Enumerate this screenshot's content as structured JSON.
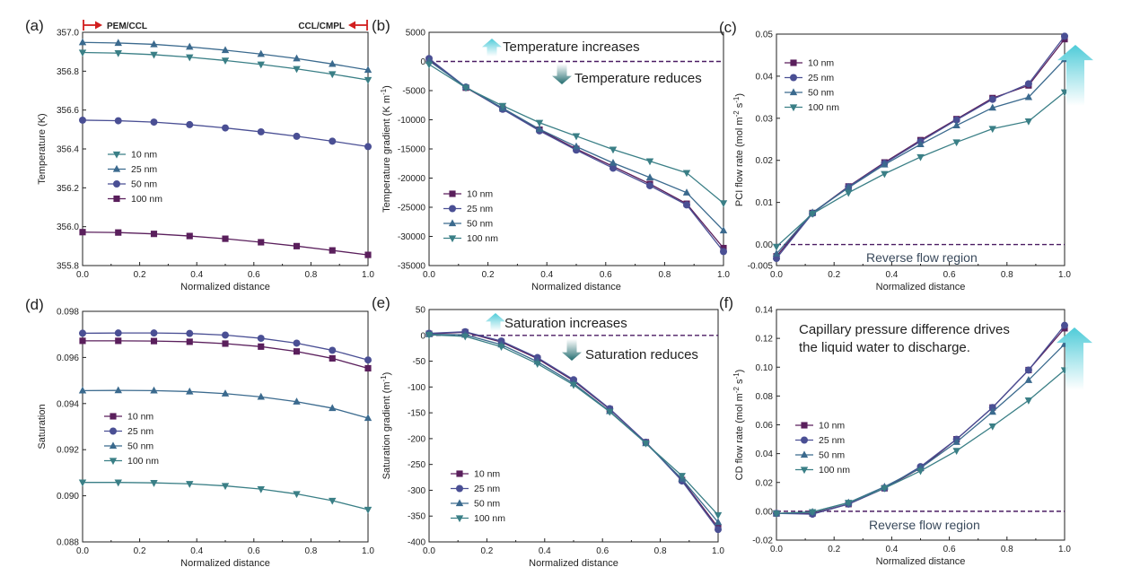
{
  "colors": {
    "c10": "#3a7f86",
    "c25": "#3b6a8e",
    "c50": "#4a4f94",
    "c100": "#5a1f5c",
    "dashed": "#4b1d63",
    "arrow_light": "#5fd0dc",
    "arrow_dark": "#1f6a6d",
    "region_marker": "#d21e1e",
    "axis": "#222222"
  },
  "region_labels": {
    "left": "PEM/CCL",
    "right": "CCL/CMPL"
  },
  "chart_data": [
    {
      "panel": "(a)",
      "type": "line",
      "xlabel": "Normalized distance",
      "ylabel": "Temperature (K)",
      "xlim": [
        0,
        1
      ],
      "ylim": [
        355.8,
        357.0
      ],
      "xticks": [
        "0.0",
        "0.2",
        "0.4",
        "0.6",
        "0.8",
        "1.0"
      ],
      "yticks": [
        "355.8",
        "356.0",
        "356.2",
        "356.4",
        "356.6",
        "356.8",
        "357.0"
      ],
      "x": [
        0,
        0.125,
        0.25,
        0.375,
        0.5,
        0.625,
        0.75,
        0.875,
        1.0
      ],
      "series": [
        {
          "name": "10 nm",
          "marker": "tri-down",
          "color_key": "c10",
          "values": [
            356.896,
            356.893,
            356.885,
            356.872,
            356.855,
            356.835,
            356.812,
            356.785,
            356.755
          ]
        },
        {
          "name": "25 nm",
          "marker": "tri-up",
          "color_key": "c25",
          "values": [
            356.948,
            356.945,
            356.938,
            356.925,
            356.908,
            356.888,
            356.865,
            356.837,
            356.806
          ]
        },
        {
          "name": "50 nm",
          "marker": "circle",
          "color_key": "c50",
          "values": [
            356.548,
            356.545,
            356.538,
            356.525,
            356.508,
            356.488,
            356.465,
            356.44,
            356.412
          ]
        },
        {
          "name": "100 nm",
          "marker": "square",
          "color_key": "c100",
          "values": [
            355.972,
            355.97,
            355.963,
            355.952,
            355.938,
            355.92,
            355.9,
            355.878,
            355.855
          ]
        }
      ]
    },
    {
      "panel": "(b)",
      "type": "line",
      "xlabel": "Normalized distance",
      "ylabel": "Temperature gradient (K m",
      "ylabel_sup": "-1",
      "ylabel_end": ")",
      "xlim": [
        0,
        1
      ],
      "ylim": [
        -35000,
        5000
      ],
      "xticks": [
        "0.0",
        "0.2",
        "0.4",
        "0.6",
        "0.8",
        "1.0"
      ],
      "yticks": [
        "-35000",
        "-30000",
        "-25000",
        "-20000",
        "-15000",
        "-10000",
        "-5000",
        "0",
        "5000"
      ],
      "annotations": [
        "Temperature increases",
        "Temperature reduces"
      ],
      "x": [
        0,
        0.125,
        0.25,
        0.375,
        0.5,
        0.625,
        0.75,
        0.875,
        1.0
      ],
      "series": [
        {
          "name": "10 nm",
          "marker": "square",
          "color_key": "c100",
          "values": [
            300,
            -4500,
            -8100,
            -11700,
            -15000,
            -18000,
            -21000,
            -24400,
            -32000
          ]
        },
        {
          "name": "25 nm",
          "marker": "circle",
          "color_key": "c50",
          "values": [
            500,
            -4400,
            -8200,
            -11900,
            -15200,
            -18300,
            -21300,
            -24600,
            -32600
          ]
        },
        {
          "name": "50 nm",
          "marker": "tri-up",
          "color_key": "c25",
          "values": [
            100,
            -4400,
            -8000,
            -11600,
            -14600,
            -17400,
            -19900,
            -22500,
            -29000
          ]
        },
        {
          "name": "100 nm",
          "marker": "tri-down",
          "color_key": "c10",
          "values": [
            -500,
            -4500,
            -7600,
            -10500,
            -12800,
            -15100,
            -17100,
            -19100,
            -24300
          ]
        }
      ]
    },
    {
      "panel": "(c)",
      "type": "line",
      "xlabel": "Normalized distance",
      "ylabel": "PCI flow rate (mol m",
      "ylabel_sup1": "-2",
      "ylabel_mid": " s",
      "ylabel_sup2": "-1",
      "ylabel_end": ")",
      "xlim": [
        0,
        1
      ],
      "ylim": [
        -0.005,
        0.05
      ],
      "xticks": [
        "0.0",
        "0.2",
        "0.4",
        "0.6",
        "0.8",
        "1.0"
      ],
      "yticks": [
        "-0.005",
        "0.00",
        "0.01",
        "0.02",
        "0.03",
        "0.04",
        "0.05"
      ],
      "annotations": [
        "Reverse flow region"
      ],
      "x": [
        0,
        0.125,
        0.25,
        0.375,
        0.5,
        0.625,
        0.75,
        0.875,
        1.0
      ],
      "series": [
        {
          "name": "10 nm",
          "marker": "square",
          "color_key": "c100",
          "values": [
            -0.0028,
            0.0075,
            0.0138,
            0.0195,
            0.0248,
            0.0298,
            0.0348,
            0.0378,
            0.0488
          ]
        },
        {
          "name": "25 nm",
          "marker": "circle",
          "color_key": "c50",
          "values": [
            -0.0033,
            0.0074,
            0.0137,
            0.0193,
            0.0245,
            0.0296,
            0.0345,
            0.0382,
            0.0495
          ]
        },
        {
          "name": "50 nm",
          "marker": "tri-up",
          "color_key": "c25",
          "values": [
            -0.0022,
            0.0076,
            0.0135,
            0.019,
            0.0238,
            0.0283,
            0.0325,
            0.035,
            0.044
          ]
        },
        {
          "name": "100 nm",
          "marker": "tri-down",
          "color_key": "c10",
          "values": [
            -0.0005,
            0.0073,
            0.0123,
            0.0168,
            0.0208,
            0.0243,
            0.0275,
            0.0293,
            0.0362
          ]
        }
      ]
    },
    {
      "panel": "(d)",
      "type": "line",
      "xlabel": "Normalized distance",
      "ylabel": "Saturation",
      "xlim": [
        0,
        1
      ],
      "ylim": [
        0.088,
        0.098
      ],
      "xticks": [
        "0.0",
        "0.2",
        "0.4",
        "0.6",
        "0.8",
        "1.0"
      ],
      "yticks": [
        "0.088",
        "0.090",
        "0.092",
        "0.094",
        "0.096",
        "0.098"
      ],
      "x": [
        0,
        0.125,
        0.25,
        0.375,
        0.5,
        0.625,
        0.75,
        0.875,
        1.0
      ],
      "series": [
        {
          "name": "10 nm",
          "marker": "square",
          "color_key": "c100",
          "values": [
            0.09672,
            0.09672,
            0.09671,
            0.09668,
            0.0966,
            0.09647,
            0.09626,
            0.09596,
            0.09553
          ]
        },
        {
          "name": "25 nm",
          "marker": "circle",
          "color_key": "c50",
          "values": [
            0.09705,
            0.09706,
            0.09706,
            0.09704,
            0.09697,
            0.09683,
            0.09662,
            0.09631,
            0.09589
          ]
        },
        {
          "name": "50 nm",
          "marker": "tri-up",
          "color_key": "c25",
          "values": [
            0.09456,
            0.09457,
            0.09456,
            0.09452,
            0.09443,
            0.09429,
            0.09408,
            0.0938,
            0.09337
          ]
        },
        {
          "name": "100 nm",
          "marker": "tri-down",
          "color_key": "c10",
          "values": [
            0.09058,
            0.09058,
            0.09056,
            0.09052,
            0.09043,
            0.09029,
            0.09008,
            0.08979,
            0.0894
          ]
        }
      ]
    },
    {
      "panel": "(e)",
      "type": "line",
      "xlabel": "Normalized distance",
      "ylabel": "Saturation gradient (m",
      "ylabel_sup": "-1",
      "ylabel_end": ")",
      "xlim": [
        0,
        1
      ],
      "ylim": [
        -400,
        50
      ],
      "xticks": [
        "0.0",
        "0.2",
        "0.4",
        "0.6",
        "0.8",
        "1.0"
      ],
      "yticks": [
        "-400",
        "-350",
        "-300",
        "-250",
        "-200",
        "-150",
        "-100",
        "-50",
        "0",
        "50"
      ],
      "annotations": [
        "Saturation increases",
        "Saturation reduces"
      ],
      "x": [
        0,
        0.125,
        0.25,
        0.375,
        0.5,
        0.625,
        0.75,
        0.875,
        1.0
      ],
      "series": [
        {
          "name": "10 nm",
          "marker": "square",
          "color_key": "c100",
          "values": [
            3,
            6,
            -13,
            -45,
            -88,
            -143,
            -207,
            -280,
            -372
          ]
        },
        {
          "name": "25 nm",
          "marker": "circle",
          "color_key": "c50",
          "values": [
            4,
            7,
            -11,
            -43,
            -86,
            -142,
            -207,
            -282,
            -376
          ]
        },
        {
          "name": "50 nm",
          "marker": "tri-up",
          "color_key": "c25",
          "values": [
            2,
            1,
            -18,
            -51,
            -93,
            -147,
            -209,
            -278,
            -362
          ]
        },
        {
          "name": "100 nm",
          "marker": "tri-down",
          "color_key": "c10",
          "values": [
            1,
            -2,
            -22,
            -55,
            -96,
            -148,
            -209,
            -272,
            -348
          ]
        }
      ]
    },
    {
      "panel": "(f)",
      "type": "line",
      "xlabel": "Normalized distance",
      "ylabel": "CD flow rate (mol m",
      "ylabel_sup1": "-2",
      "ylabel_mid": " s",
      "ylabel_sup2": "-1",
      "ylabel_end": ")",
      "xlim": [
        0,
        1
      ],
      "ylim": [
        -0.02,
        0.14
      ],
      "xticks": [
        "0.0",
        "0.2",
        "0.4",
        "0.6",
        "0.8",
        "1.0"
      ],
      "yticks": [
        "-0.02",
        "0.00",
        "0.02",
        "0.04",
        "0.06",
        "0.08",
        "0.10",
        "0.12",
        "0.14"
      ],
      "annotations": [
        "Capillary pressure difference drives",
        "the liquid water to discharge.",
        "Reverse flow region"
      ],
      "x": [
        0,
        0.125,
        0.25,
        0.375,
        0.5,
        0.625,
        0.75,
        0.875,
        1.0
      ],
      "series": [
        {
          "name": "10 nm",
          "marker": "square",
          "color_key": "c100",
          "values": [
            -0.0015,
            -0.0015,
            0.005,
            0.016,
            0.03,
            0.05,
            0.072,
            0.098,
            0.127
          ]
        },
        {
          "name": "25 nm",
          "marker": "circle",
          "color_key": "c50",
          "values": [
            -0.0015,
            -0.002,
            0.005,
            0.016,
            0.031,
            0.05,
            0.072,
            0.098,
            0.129
          ]
        },
        {
          "name": "50 nm",
          "marker": "tri-up",
          "color_key": "c25",
          "values": [
            -0.0015,
            -0.0005,
            0.006,
            0.017,
            0.03,
            0.048,
            0.069,
            0.091,
            0.116
          ]
        },
        {
          "name": "100 nm",
          "marker": "tri-down",
          "color_key": "c10",
          "values": [
            -0.0015,
            -0.0005,
            0.006,
            0.016,
            0.028,
            0.042,
            0.059,
            0.077,
            0.098
          ]
        }
      ]
    }
  ]
}
